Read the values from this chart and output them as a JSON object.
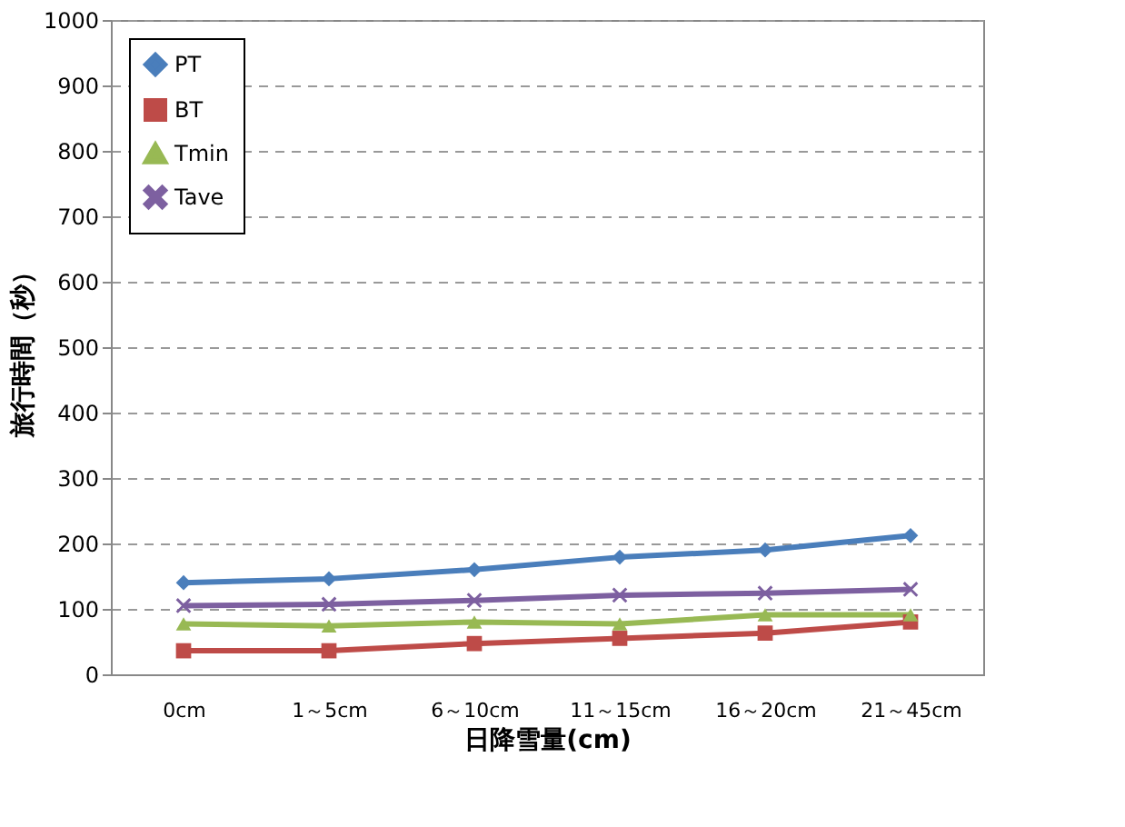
{
  "chart_data": {
    "type": "line",
    "xlabel": "日降雪量(cm)",
    "ylabel": "旅行時間（秒）",
    "categories": [
      "0cm",
      "1～5cm",
      "6～10cm",
      "11～15cm",
      "16～20cm",
      "21～45cm"
    ],
    "series": [
      {
        "name": "PT",
        "color": "#4a7ebb",
        "marker": "diamond",
        "values": [
          140,
          146,
          160,
          179,
          190,
          212
        ]
      },
      {
        "name": "BT",
        "color": "#be4b48",
        "marker": "square",
        "values": [
          36,
          36,
          47,
          55,
          63,
          80
        ]
      },
      {
        "name": "Tmin",
        "color": "#98b954",
        "marker": "triangle",
        "values": [
          77,
          74,
          80,
          77,
          91,
          91
        ]
      },
      {
        "name": "Tave",
        "color": "#7d60a0",
        "marker": "cross",
        "values": [
          105,
          107,
          113,
          121,
          124,
          130
        ]
      }
    ],
    "ylim": [
      0,
      1000
    ],
    "yticks": [
      0,
      100,
      200,
      300,
      400,
      500,
      600,
      700,
      800,
      900,
      1000
    ],
    "grid": "y",
    "legend": "top left",
    "line_style": "solid"
  }
}
